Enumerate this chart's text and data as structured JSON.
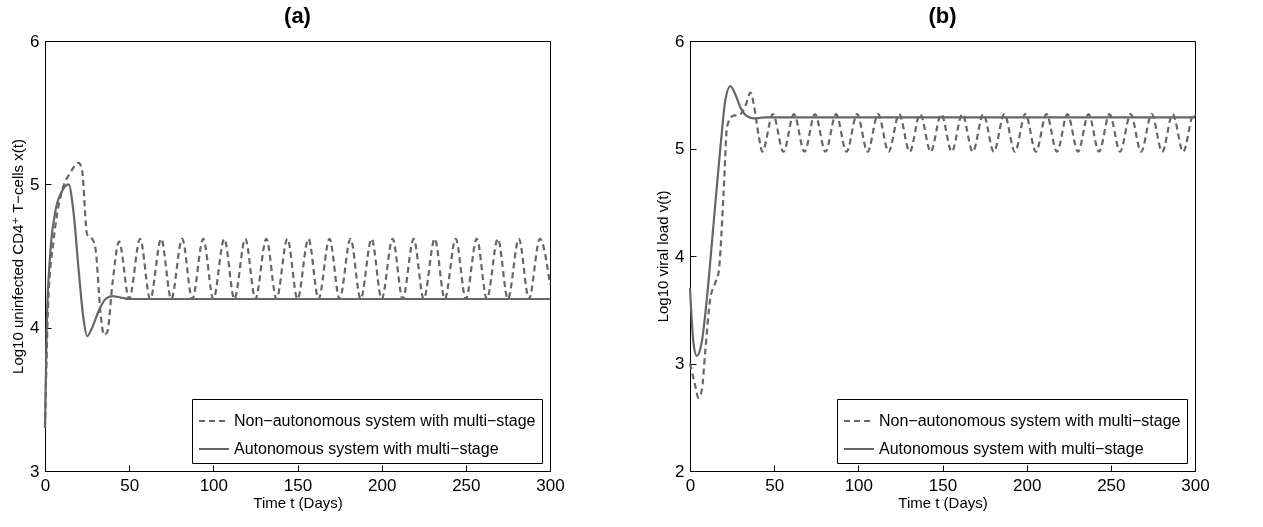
{
  "chart_data": [
    {
      "type": "line",
      "title": "(a)",
      "xlabel": "Time t (Days)",
      "ylabel": "Log10 uninfected CD4⁺ T−cells x(t)",
      "xlim": [
        0,
        300
      ],
      "ylim": [
        3,
        6
      ],
      "xticks": [
        0,
        50,
        100,
        150,
        200,
        250,
        300
      ],
      "yticks": [
        3,
        4,
        5,
        6
      ],
      "grid": false,
      "legend": "bottom right",
      "marker": "none",
      "series": [
        {
          "name": "Non−autonomous system with multi−stage",
          "color": "#666666",
          "line_style": "dashed",
          "x": [
            0,
            2,
            5,
            10,
            15,
            20,
            22,
            25,
            28,
            30,
            33,
            35,
            37,
            40,
            44,
            50,
            56.5,
            62.5,
            69,
            75,
            81.5,
            87.5,
            94,
            100,
            106.5,
            112.5,
            119,
            125,
            131.5,
            137.5,
            144,
            150,
            156.5,
            162.5,
            169,
            175,
            181.5,
            187.5,
            194,
            200,
            206.5,
            212.5,
            219,
            225,
            231.5,
            237.5,
            244,
            250,
            256.5,
            262.5,
            269,
            275,
            281.5,
            287.5,
            294,
            300
          ],
          "values": [
            3.3,
            4.2,
            4.6,
            4.95,
            5.08,
            5.15,
            5.1,
            4.65,
            4.62,
            4.55,
            4.1,
            3.95,
            3.97,
            4.3,
            4.6,
            4.2,
            4.62,
            4.2,
            4.62,
            4.2,
            4.62,
            4.2,
            4.62,
            4.2,
            4.62,
            4.2,
            4.62,
            4.2,
            4.62,
            4.2,
            4.62,
            4.2,
            4.62,
            4.2,
            4.62,
            4.2,
            4.62,
            4.2,
            4.62,
            4.2,
            4.62,
            4.2,
            4.62,
            4.2,
            4.62,
            4.2,
            4.62,
            4.2,
            4.62,
            4.2,
            4.62,
            4.2,
            4.62,
            4.2,
            4.62,
            4.3
          ]
        },
        {
          "name": "Autonomous system with multi−stage",
          "color": "#666666",
          "line_style": "solid",
          "x": [
            0,
            1,
            3,
            6,
            10,
            14,
            17,
            20,
            23,
            25,
            28,
            32,
            36,
            40,
            45,
            50,
            300
          ],
          "values": [
            3.3,
            4.0,
            4.5,
            4.8,
            4.95,
            5.0,
            4.8,
            4.4,
            4.05,
            3.94,
            4.0,
            4.12,
            4.2,
            4.22,
            4.21,
            4.2,
            4.2
          ]
        }
      ]
    },
    {
      "type": "line",
      "title": "(b)",
      "xlabel": "Time t (Days)",
      "ylabel": "Log10 viral load v(t)",
      "xlim": [
        0,
        300
      ],
      "ylim": [
        2,
        6
      ],
      "xticks": [
        0,
        50,
        100,
        150,
        200,
        250,
        300
      ],
      "yticks": [
        2,
        3,
        4,
        5,
        6
      ],
      "grid": false,
      "legend": "bottom right",
      "marker": "none",
      "series": [
        {
          "name": "Non−autonomous system with multi−stage",
          "color": "#666666",
          "line_style": "dashed",
          "x": [
            0,
            3,
            5,
            7,
            9,
            12,
            15,
            17,
            20,
            22,
            25,
            30,
            33,
            36,
            38,
            41,
            43,
            49.25,
            55.5,
            61.75,
            68,
            74.25,
            80.5,
            86.75,
            93,
            99.25,
            105.5,
            111.75,
            118,
            124.25,
            130.5,
            136.75,
            143,
            149.25,
            155.5,
            161.75,
            168,
            174.25,
            180.5,
            186.75,
            193,
            199.25,
            205.5,
            211.75,
            218,
            224.25,
            230.5,
            236.75,
            243,
            249.25,
            255.5,
            261.75,
            268,
            274.25,
            280.5,
            286.75,
            293,
            299.25,
            300
          ],
          "values": [
            3.0,
            2.8,
            2.68,
            2.75,
            3.1,
            3.6,
            3.75,
            3.85,
            4.6,
            5.2,
            5.3,
            5.32,
            5.4,
            5.52,
            5.4,
            5.1,
            4.97,
            5.32,
            4.97,
            5.32,
            4.97,
            5.32,
            4.97,
            5.32,
            4.97,
            5.32,
            4.97,
            5.32,
            4.97,
            5.32,
            4.97,
            5.32,
            4.97,
            5.32,
            4.97,
            5.32,
            4.97,
            5.32,
            4.97,
            5.32,
            4.97,
            5.32,
            4.97,
            5.32,
            4.97,
            5.32,
            4.97,
            5.32,
            4.97,
            5.32,
            4.97,
            5.32,
            4.97,
            5.32,
            4.97,
            5.32,
            4.97,
            5.32,
            5.3
          ]
        },
        {
          "name": "Autonomous system with multi−stage",
          "color": "#666666",
          "line_style": "solid",
          "x": [
            0,
            2,
            4,
            7,
            10,
            14,
            18,
            21,
            24,
            27,
            30,
            34,
            38,
            45,
            300
          ],
          "values": [
            3.7,
            3.2,
            3.07,
            3.2,
            3.6,
            4.3,
            5.0,
            5.45,
            5.58,
            5.5,
            5.38,
            5.3,
            5.28,
            5.29,
            5.29
          ]
        }
      ]
    }
  ]
}
